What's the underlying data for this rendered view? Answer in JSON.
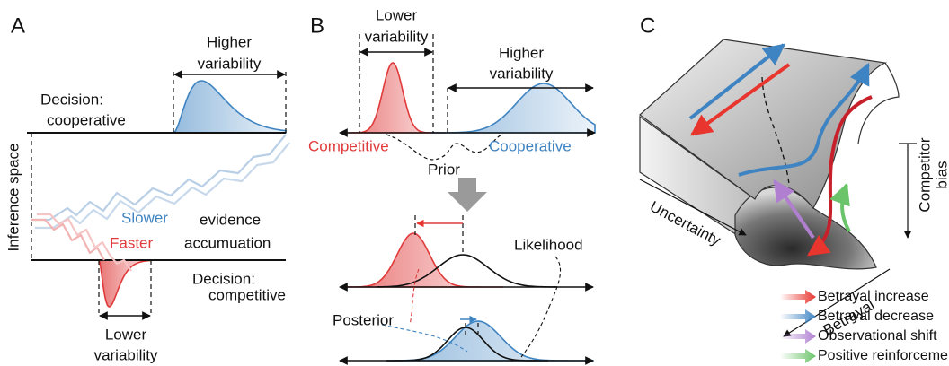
{
  "panel_a": {
    "label": "A",
    "higher_variability": [
      "Higher",
      "variability"
    ],
    "decision_cooperative": [
      "Decision:",
      "cooperative"
    ],
    "y_axis_label": "Inference space",
    "slower": "Slower",
    "faster": "Faster",
    "evidence_accumulation": [
      "evidence",
      "accumuation"
    ],
    "decision_competitive": [
      "Decision:",
      "competitive"
    ],
    "lower_variability": [
      "Lower",
      "variability"
    ]
  },
  "panel_b": {
    "label": "B",
    "lower_variability": [
      "Lower",
      "variability"
    ],
    "higher_variability": [
      "Higher",
      "variability"
    ],
    "competitive": "Competitive",
    "cooperative": "Cooperative",
    "prior": "Prior",
    "likelihood": "Likelihood",
    "posterior": "Posterior"
  },
  "panel_c": {
    "label": "C",
    "competitor_bias": [
      "Competitor",
      "bias"
    ],
    "uncertainty": "Uncertainty",
    "betrayal": "Betrayal",
    "legend": [
      {
        "label": "Betrayal increase",
        "color": "#e8352e"
      },
      {
        "label": "Betrayal decrease",
        "color": "#3f84c2"
      },
      {
        "label": "Observational shift",
        "color": "#b07fd0"
      },
      {
        "label": "Positive reinforcement",
        "color": "#6cc46a"
      }
    ]
  }
}
